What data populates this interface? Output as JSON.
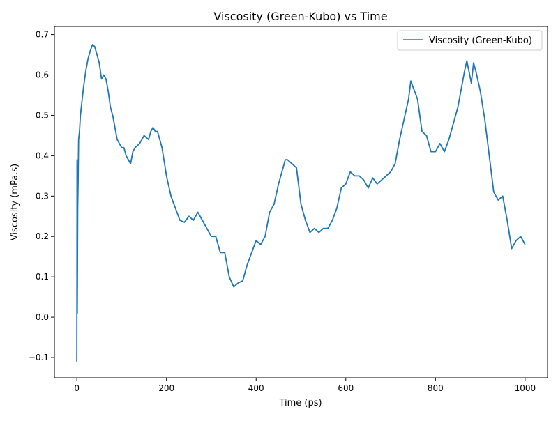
{
  "chart_data": {
    "type": "line",
    "title": "Viscosity (Green-Kubo) vs Time",
    "xlabel": "Time (ps)",
    "ylabel": "Viscosity (mPa.s)",
    "xlim": [
      -50,
      1050
    ],
    "ylim": [
      -0.15,
      0.72
    ],
    "xticks": [
      0,
      200,
      400,
      600,
      800,
      1000
    ],
    "xtick_labels": [
      "0",
      "200",
      "400",
      "600",
      "800",
      "1000"
    ],
    "yticks": [
      -0.1,
      0.0,
      0.1,
      0.2,
      0.3,
      0.4,
      0.5,
      0.6,
      0.7
    ],
    "ytick_labels": [
      "−0.1",
      "0.0",
      "0.1",
      "0.2",
      "0.3",
      "0.4",
      "0.5",
      "0.6",
      "0.7"
    ],
    "grid": false,
    "legend_position": "top-right",
    "series": [
      {
        "name": "Viscosity (Green-Kubo)",
        "color": "#1f77b4",
        "x": [
          0,
          0.5,
          1,
          2,
          3,
          4,
          6,
          8,
          10,
          15,
          20,
          25,
          30,
          35,
          40,
          45,
          50,
          55,
          60,
          65,
          70,
          75,
          80,
          85,
          90,
          95,
          100,
          105,
          110,
          115,
          120,
          125,
          130,
          140,
          150,
          160,
          165,
          170,
          175,
          180,
          190,
          200,
          210,
          220,
          230,
          240,
          250,
          260,
          270,
          280,
          290,
          300,
          310,
          320,
          330,
          340,
          350,
          360,
          370,
          380,
          390,
          400,
          410,
          420,
          430,
          440,
          450,
          460,
          465,
          470,
          480,
          490,
          500,
          510,
          520,
          530,
          540,
          550,
          560,
          570,
          580,
          590,
          600,
          610,
          620,
          630,
          640,
          650,
          660,
          670,
          680,
          690,
          700,
          710,
          720,
          730,
          740,
          745,
          750,
          760,
          770,
          780,
          790,
          800,
          810,
          820,
          830,
          840,
          850,
          860,
          865,
          870,
          880,
          885,
          890,
          900,
          910,
          920,
          930,
          940,
          950,
          960,
          970,
          980,
          990,
          1000
        ],
        "y": [
          -0.11,
          0.39,
          0.01,
          0.27,
          0.34,
          0.44,
          0.46,
          0.5,
          0.52,
          0.57,
          0.61,
          0.64,
          0.66,
          0.675,
          0.67,
          0.65,
          0.63,
          0.59,
          0.6,
          0.59,
          0.56,
          0.52,
          0.5,
          0.47,
          0.44,
          0.43,
          0.42,
          0.42,
          0.4,
          0.39,
          0.38,
          0.41,
          0.42,
          0.43,
          0.45,
          0.44,
          0.46,
          0.47,
          0.46,
          0.46,
          0.42,
          0.35,
          0.3,
          0.27,
          0.24,
          0.235,
          0.25,
          0.24,
          0.26,
          0.24,
          0.22,
          0.2,
          0.2,
          0.16,
          0.16,
          0.1,
          0.075,
          0.085,
          0.09,
          0.13,
          0.16,
          0.19,
          0.18,
          0.2,
          0.26,
          0.28,
          0.33,
          0.37,
          0.39,
          0.39,
          0.38,
          0.37,
          0.28,
          0.24,
          0.21,
          0.22,
          0.21,
          0.22,
          0.22,
          0.24,
          0.27,
          0.32,
          0.33,
          0.36,
          0.35,
          0.35,
          0.34,
          0.32,
          0.345,
          0.33,
          0.34,
          0.35,
          0.36,
          0.38,
          0.44,
          0.49,
          0.54,
          0.585,
          0.57,
          0.54,
          0.46,
          0.45,
          0.41,
          0.41,
          0.43,
          0.41,
          0.44,
          0.48,
          0.52,
          0.58,
          0.61,
          0.635,
          0.58,
          0.63,
          0.61,
          0.56,
          0.49,
          0.4,
          0.31,
          0.29,
          0.3,
          0.24,
          0.17,
          0.19,
          0.2,
          0.18
        ]
      }
    ]
  }
}
